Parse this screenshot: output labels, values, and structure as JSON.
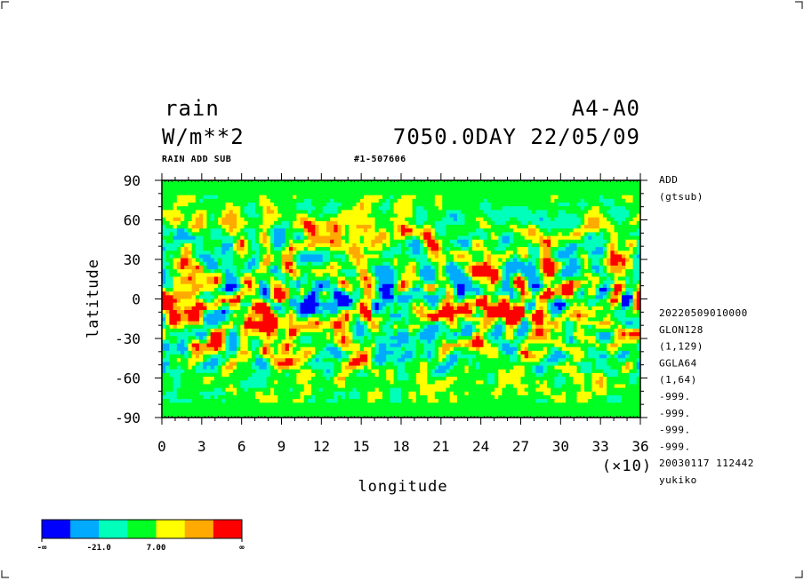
{
  "header": {
    "variable": "rain",
    "units": "W/m**2",
    "experiment": "A4-A0",
    "time": "7050.0DAY 22/05/09",
    "subtitle_left": "RAIN ADD SUB",
    "subtitle_right": "#1-507606"
  },
  "side_info": {
    "top": [
      "ADD",
      "(gtsub)"
    ],
    "bottom": [
      "20220509010000",
      "GLON128",
      "(1,129)",
      "GGLA64",
      "(1,64)",
      "-999.",
      "-999.",
      "-999.",
      "-999.",
      "20030117 112442",
      "yukiko"
    ]
  },
  "chart_data": {
    "type": "heatmap",
    "xlabel": "longitude",
    "ylabel": "latitude",
    "x_multiplier_label": "(×10)",
    "xlim": [
      0,
      36
    ],
    "ylim": [
      -90,
      90
    ],
    "x_ticks": [
      "0",
      "3",
      "6",
      "9",
      "12",
      "15",
      "18",
      "21",
      "24",
      "27",
      "30",
      "33",
      "36"
    ],
    "y_ticks": [
      "90",
      "60",
      "30",
      "0",
      "-30",
      "-60",
      "-90"
    ],
    "colorbar": {
      "colors": [
        "#0000ff",
        "#00aaff",
        "#00ffbb",
        "#00ff22",
        "#ffff00",
        "#ffaa00",
        "#ff0000"
      ],
      "labels": [
        "-∞",
        "-21.0",
        "7.00",
        "∞"
      ]
    }
  }
}
